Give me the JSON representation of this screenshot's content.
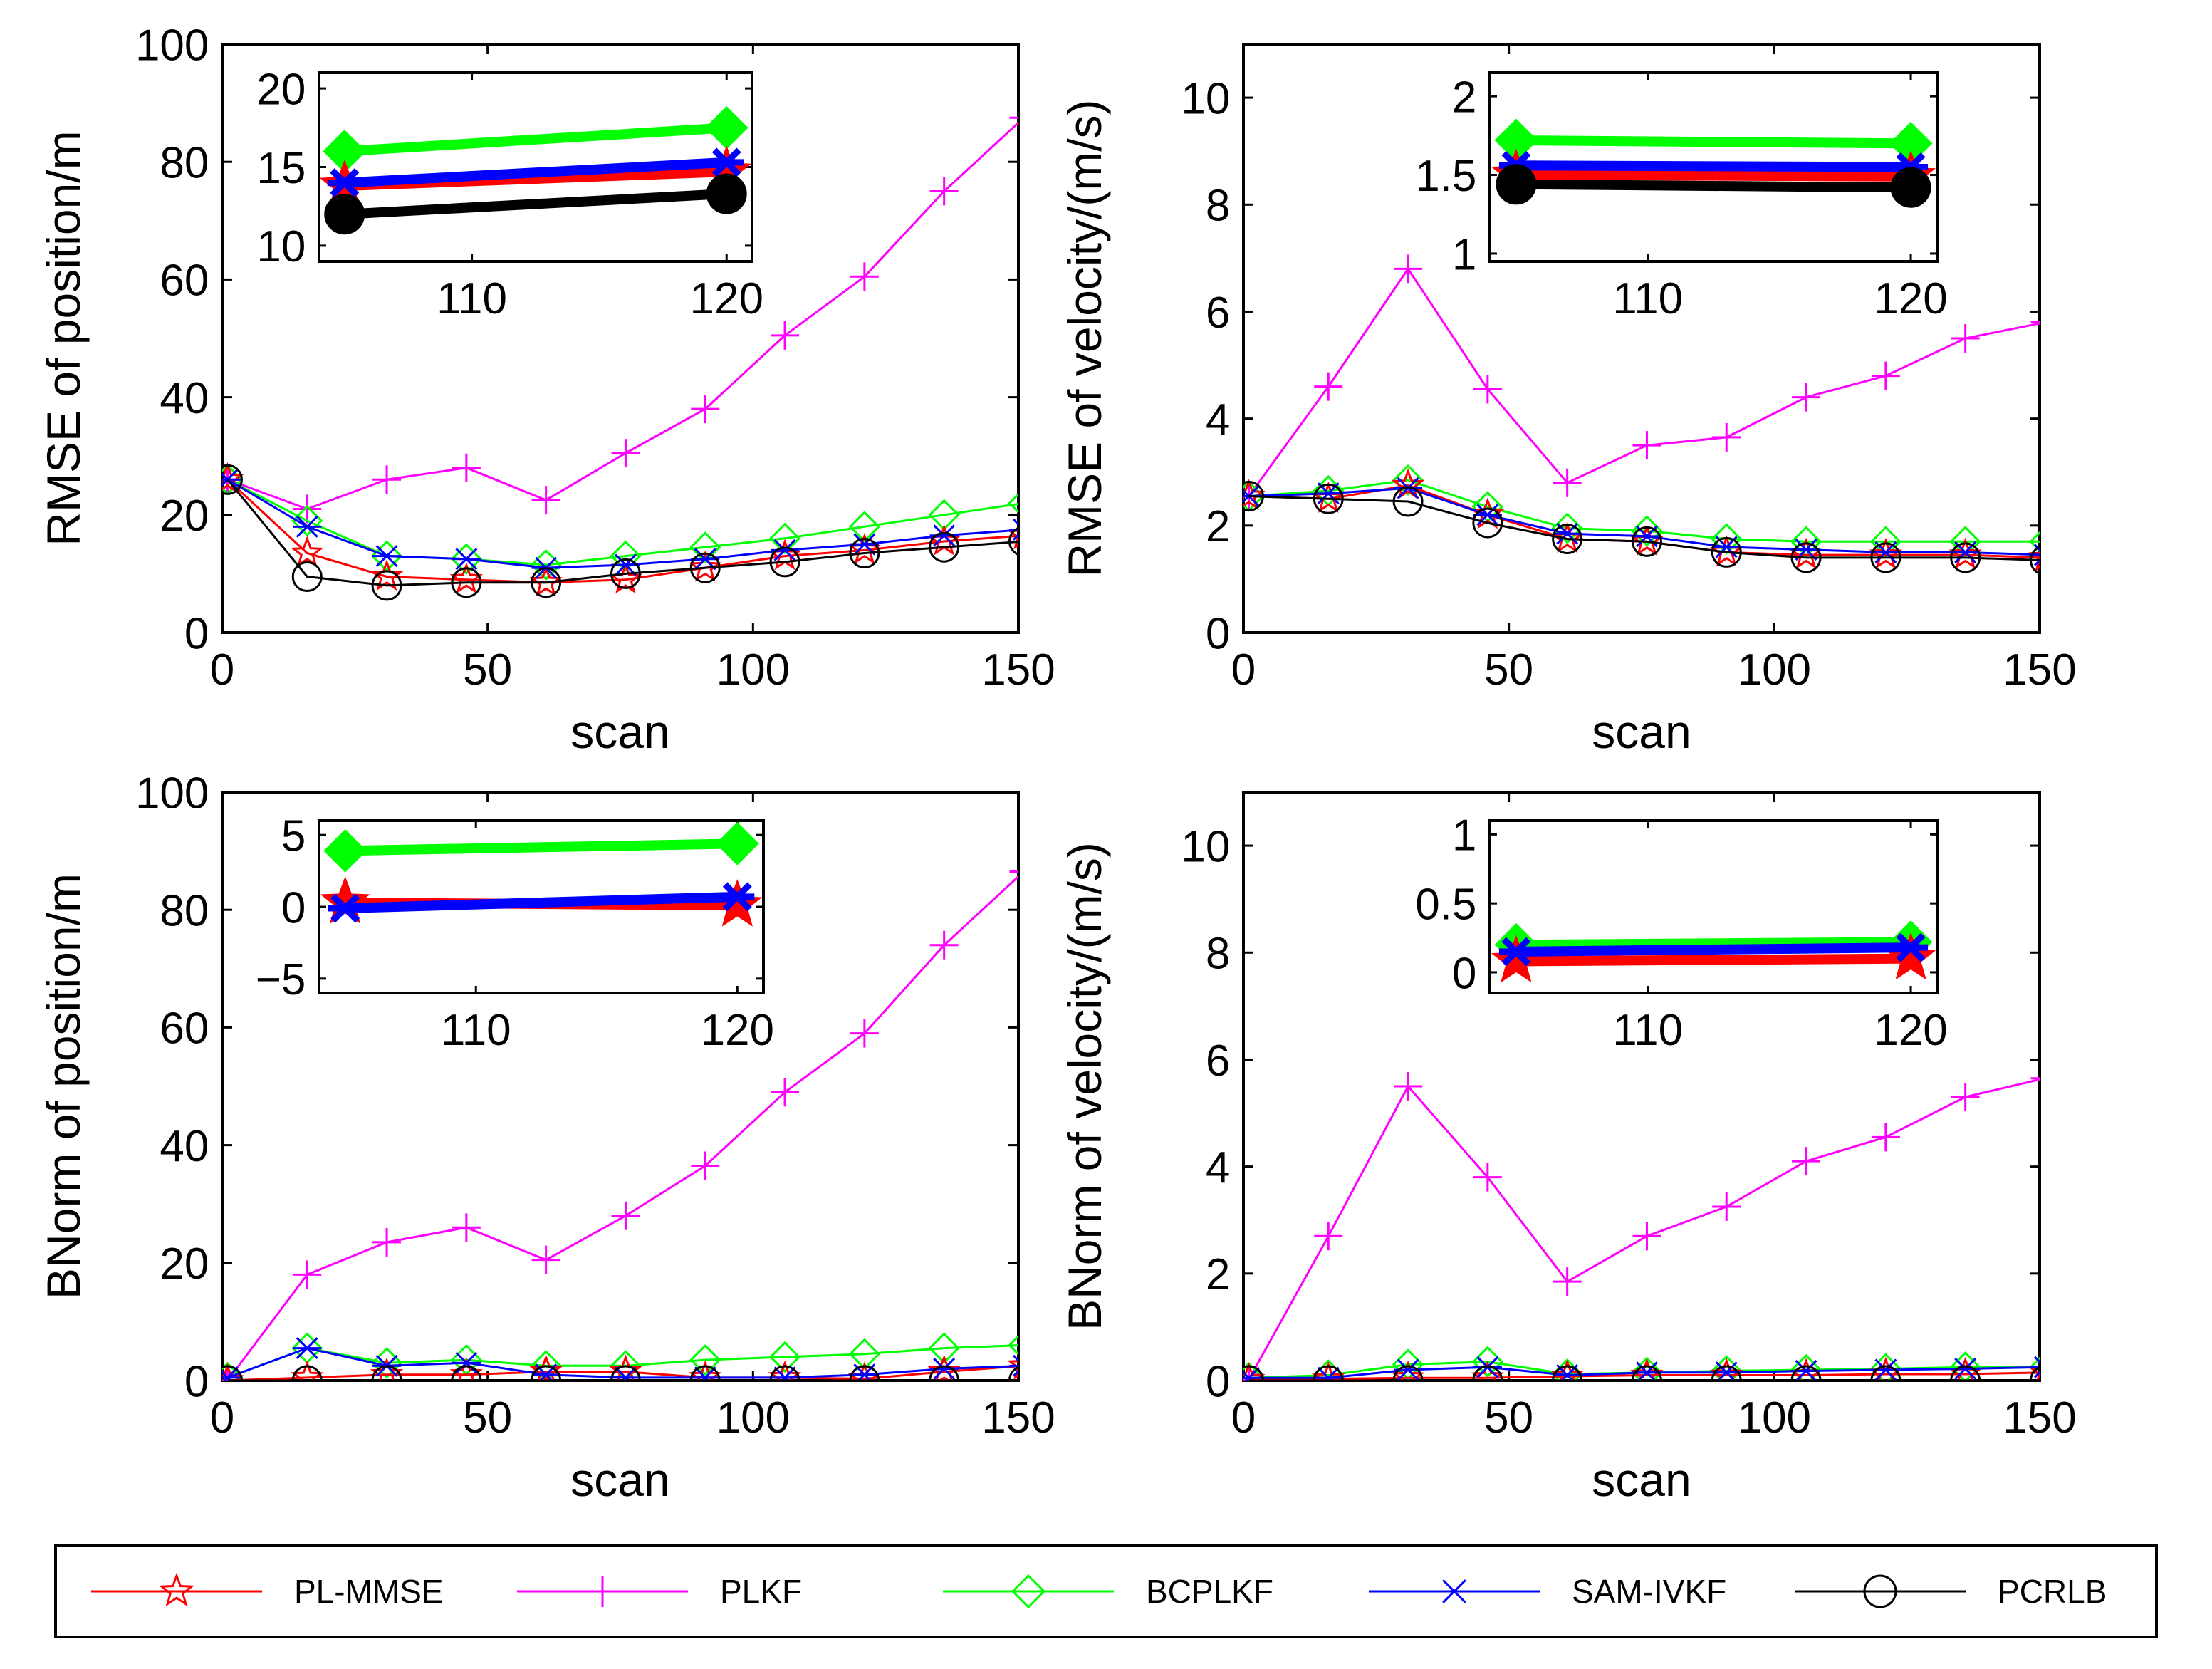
{
  "chart_data": [
    {
      "type": "line",
      "ylabel": "RMSE of position/m",
      "xlabel": "scan",
      "xlim": [
        0,
        150
      ],
      "ylim": [
        0,
        100
      ],
      "xticks": [
        0,
        50,
        100,
        150
      ],
      "yticks": [
        0,
        20,
        40,
        60,
        80,
        100
      ],
      "x": [
        1,
        16,
        31,
        46,
        61,
        76,
        91,
        106,
        121,
        136,
        151
      ],
      "series": [
        {
          "name": "PL-MMSE",
          "values": [
            26,
            13.5,
            9.5,
            9,
            8.5,
            9,
            11,
            13,
            14,
            15.5,
            16.5
          ]
        },
        {
          "name": "PLKF",
          "values": [
            26,
            21,
            26,
            28,
            22.5,
            30.5,
            38,
            50.5,
            60.5,
            75,
            87.5
          ]
        },
        {
          "name": "BCPLKF",
          "values": [
            26,
            19,
            13,
            12.5,
            11.5,
            13,
            14.5,
            16,
            18,
            20,
            22
          ]
        },
        {
          "name": "SAM-IVKF",
          "values": [
            26,
            18,
            13,
            12.5,
            11,
            11.5,
            12.5,
            14,
            15,
            16.5,
            17.5
          ]
        },
        {
          "name": "PCRLB",
          "values": [
            26,
            9.5,
            8,
            8.5,
            8.5,
            10,
            11,
            12,
            13.5,
            14.5,
            15.5
          ]
        }
      ],
      "inset": {
        "xlim": [
          104,
          121
        ],
        "ylim": [
          9,
          21
        ],
        "xticks": [
          110,
          120
        ],
        "yticks": [
          10,
          15,
          20
        ],
        "x": [
          105,
          120
        ],
        "series": [
          {
            "name": "PL-MMSE",
            "values": [
              13.8,
              14.7
            ]
          },
          {
            "name": "PLKF",
            "values": [
              null,
              null
            ]
          },
          {
            "name": "BCPLKF",
            "values": [
              16.0,
              17.5
            ]
          },
          {
            "name": "SAM-IVKF",
            "values": [
              14.0,
              15.3
            ]
          },
          {
            "name": "PCRLB",
            "values": [
              12.0,
              13.3
            ]
          }
        ]
      }
    },
    {
      "type": "line",
      "ylabel": "RMSE of velocity/(m/s)",
      "xlabel": "scan",
      "xlim": [
        0,
        150
      ],
      "ylim": [
        0,
        11
      ],
      "xticks": [
        0,
        50,
        100,
        150
      ],
      "yticks": [
        0,
        2,
        4,
        6,
        8,
        10
      ],
      "x": [
        1,
        16,
        31,
        46,
        61,
        76,
        91,
        106,
        121,
        136,
        151
      ],
      "series": [
        {
          "name": "PL-MMSE",
          "values": [
            2.55,
            2.5,
            2.75,
            2.2,
            1.75,
            1.7,
            1.5,
            1.45,
            1.45,
            1.45,
            1.4
          ]
        },
        {
          "name": "PLKF",
          "values": [
            2.55,
            4.6,
            6.8,
            4.55,
            2.8,
            3.5,
            3.65,
            4.4,
            4.8,
            5.5,
            5.8
          ]
        },
        {
          "name": "BCPLKF",
          "values": [
            2.55,
            2.65,
            2.85,
            2.35,
            1.95,
            1.9,
            1.75,
            1.7,
            1.7,
            1.7,
            1.7
          ]
        },
        {
          "name": "SAM-IVKF",
          "values": [
            2.55,
            2.6,
            2.7,
            2.2,
            1.85,
            1.8,
            1.6,
            1.55,
            1.5,
            1.5,
            1.45
          ]
        },
        {
          "name": "PCRLB",
          "values": [
            2.55,
            2.5,
            2.45,
            2.05,
            1.75,
            1.7,
            1.5,
            1.4,
            1.4,
            1.4,
            1.35
          ]
        }
      ],
      "inset": {
        "xlim": [
          104,
          121
        ],
        "ylim": [
          0.95,
          2.15
        ],
        "xticks": [
          110,
          120
        ],
        "yticks": [
          1,
          1.5,
          2
        ],
        "x": [
          105,
          120
        ],
        "series": [
          {
            "name": "PL-MMSE",
            "values": [
              1.5,
              1.49
            ]
          },
          {
            "name": "PLKF",
            "values": [
              null,
              null
            ]
          },
          {
            "name": "BCPLKF",
            "values": [
              1.72,
              1.7
            ]
          },
          {
            "name": "SAM-IVKF",
            "values": [
              1.56,
              1.55
            ]
          },
          {
            "name": "PCRLB",
            "values": [
              1.44,
              1.42
            ]
          }
        ]
      }
    },
    {
      "type": "line",
      "ylabel": "BNorm of position/m",
      "xlabel": "scan",
      "xlim": [
        0,
        150
      ],
      "ylim": [
        0,
        100
      ],
      "xticks": [
        0,
        50,
        100,
        150
      ],
      "yticks": [
        0,
        20,
        40,
        60,
        80,
        100
      ],
      "x": [
        1,
        16,
        31,
        46,
        61,
        76,
        91,
        106,
        121,
        136,
        151
      ],
      "series": [
        {
          "name": "PL-MMSE",
          "values": [
            0,
            0.5,
            1,
            1,
            1.5,
            1.5,
            0.5,
            0.5,
            0.3,
            1.5,
            2.5
          ]
        },
        {
          "name": "PLKF",
          "values": [
            0,
            18,
            23.5,
            26,
            20.5,
            28,
            36.5,
            49,
            59,
            74,
            86.5
          ]
        },
        {
          "name": "BCPLKF",
          "values": [
            0.5,
            5.5,
            3,
            3.5,
            2.5,
            2.5,
            3.5,
            4,
            4.5,
            5.5,
            6
          ]
        },
        {
          "name": "SAM-IVKF",
          "values": [
            0.5,
            5.5,
            2.5,
            3,
            1,
            0.5,
            0.5,
            0.5,
            1,
            2,
            2.5
          ]
        },
        {
          "name": "PCRLB",
          "values": [
            0,
            0,
            0,
            0,
            0,
            0,
            0,
            0,
            0,
            0,
            0
          ]
        }
      ],
      "inset": {
        "xlim": [
          104,
          121
        ],
        "ylim": [
          -6,
          6
        ],
        "xticks": [
          110,
          120
        ],
        "yticks": [
          -5,
          0,
          5
        ],
        "x": [
          105,
          120
        ],
        "series": [
          {
            "name": "PL-MMSE",
            "values": [
              0.3,
              0.1
            ]
          },
          {
            "name": "PLKF",
            "values": [
              null,
              null
            ]
          },
          {
            "name": "BCPLKF",
            "values": [
              3.9,
              4.4
            ]
          },
          {
            "name": "SAM-IVKF",
            "values": [
              -0.1,
              0.7
            ]
          },
          {
            "name": "PCRLB",
            "values": [
              null,
              null
            ]
          }
        ]
      }
    },
    {
      "type": "line",
      "ylabel": "BNorm of velocity/(m/s)",
      "xlabel": "scan",
      "xlim": [
        0,
        150
      ],
      "ylim": [
        0,
        11
      ],
      "xticks": [
        0,
        50,
        100,
        150
      ],
      "yticks": [
        0,
        2,
        4,
        6,
        8,
        10
      ],
      "x": [
        1,
        16,
        31,
        46,
        61,
        76,
        91,
        106,
        121,
        136,
        151
      ],
      "series": [
        {
          "name": "PL-MMSE",
          "values": [
            0.02,
            0.03,
            0.05,
            0.05,
            0.08,
            0.1,
            0.1,
            0.1,
            0.12,
            0.12,
            0.15
          ]
        },
        {
          "name": "PLKF",
          "values": [
            0.02,
            2.7,
            5.5,
            3.8,
            1.85,
            2.7,
            3.25,
            4.1,
            4.55,
            5.3,
            5.65
          ]
        },
        {
          "name": "BCPLKF",
          "values": [
            0.05,
            0.1,
            0.3,
            0.35,
            0.12,
            0.15,
            0.18,
            0.2,
            0.22,
            0.25,
            0.25
          ]
        },
        {
          "name": "SAM-IVKF",
          "values": [
            0.05,
            0.05,
            0.2,
            0.25,
            0.1,
            0.15,
            0.15,
            0.18,
            0.2,
            0.22,
            0.25
          ]
        },
        {
          "name": "PCRLB",
          "values": [
            0,
            0,
            0,
            0,
            0,
            0,
            0,
            0,
            0,
            0,
            0
          ]
        }
      ],
      "inset": {
        "xlim": [
          104,
          121
        ],
        "ylim": [
          -0.15,
          1.1
        ],
        "xticks": [
          110,
          120
        ],
        "yticks": [
          0,
          0.5,
          1
        ],
        "x": [
          105,
          120
        ],
        "series": [
          {
            "name": "PL-MMSE",
            "values": [
              0.08,
              0.1
            ]
          },
          {
            "name": "PLKF",
            "values": [
              null,
              null
            ]
          },
          {
            "name": "BCPLKF",
            "values": [
              0.2,
              0.22
            ]
          },
          {
            "name": "SAM-IVKF",
            "values": [
              0.15,
              0.18
            ]
          },
          {
            "name": "PCRLB",
            "values": [
              null,
              null
            ]
          }
        ]
      }
    }
  ],
  "legend": {
    "placement": "bottom",
    "entries": [
      {
        "name": "PL-MMSE",
        "color": "#ff0000",
        "marker": "star"
      },
      {
        "name": "PLKF",
        "color": "#ff00ff",
        "marker": "plus"
      },
      {
        "name": "BCPLKF",
        "color": "#00ff00",
        "marker": "diamond"
      },
      {
        "name": "SAM-IVKF",
        "color": "#0000ff",
        "marker": "asterisk"
      },
      {
        "name": "PCRLB",
        "color": "#000000",
        "marker": "circle"
      }
    ]
  }
}
